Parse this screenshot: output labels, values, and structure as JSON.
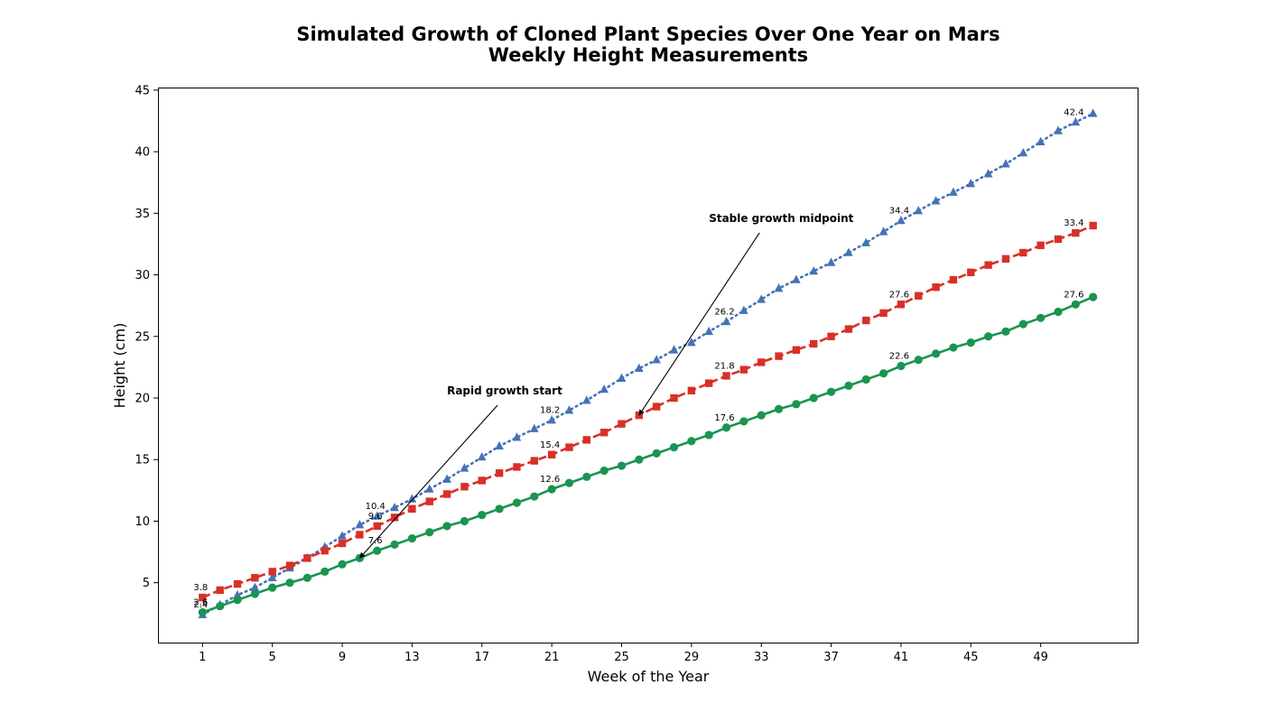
{
  "chart_data": {
    "type": "line",
    "title": "Simulated Growth of Cloned Plant Species Over One Year on Mars",
    "subtitle": "Weekly Height Measurements",
    "xlabel": "Week of the Year",
    "ylabel": "Height (cm)",
    "xlim": [
      -1.55,
      54.55
    ],
    "ylim": [
      0.14,
      45.21
    ],
    "x_ticks": [
      1,
      5,
      9,
      13,
      17,
      21,
      25,
      29,
      33,
      37,
      41,
      45,
      49
    ],
    "y_ticks": [
      5,
      10,
      15,
      20,
      25,
      30,
      35,
      40,
      45
    ],
    "grid": false,
    "legend": "none",
    "x": [
      1,
      2,
      3,
      4,
      5,
      6,
      7,
      8,
      9,
      10,
      11,
      12,
      13,
      14,
      15,
      16,
      17,
      18,
      19,
      20,
      21,
      22,
      23,
      24,
      25,
      26,
      27,
      28,
      29,
      30,
      31,
      32,
      33,
      34,
      35,
      36,
      37,
      38,
      39,
      40,
      41,
      42,
      43,
      44,
      45,
      46,
      47,
      48,
      49,
      50,
      51,
      52
    ],
    "series": [
      {
        "color": "#4472b5",
        "line_style": "dotted",
        "marker": "triangle",
        "values": [
          2.4,
          3.2,
          4.0,
          4.6,
          5.4,
          6.2,
          7.0,
          7.9,
          8.8,
          9.7,
          10.4,
          11.1,
          11.8,
          12.6,
          13.4,
          14.3,
          15.2,
          16.1,
          16.8,
          17.5,
          18.2,
          19.0,
          19.8,
          20.7,
          21.6,
          22.4,
          23.1,
          23.9,
          24.5,
          25.4,
          26.2,
          27.1,
          28.0,
          28.9,
          29.6,
          30.3,
          31.0,
          31.8,
          32.6,
          33.5,
          34.4,
          35.2,
          36.0,
          36.7,
          37.4,
          38.2,
          39.0,
          39.9,
          40.8,
          41.7,
          42.4,
          43.1
        ],
        "labels": [
          "2.4",
          "10.4",
          "18.2",
          "26.2",
          "34.4",
          "42.4"
        ]
      },
      {
        "color": "#d83028",
        "line_style": "dashed",
        "marker": "square",
        "values": [
          3.8,
          4.4,
          4.9,
          5.4,
          5.9,
          6.4,
          7.0,
          7.6,
          8.2,
          8.9,
          9.6,
          10.3,
          11.0,
          11.6,
          12.2,
          12.8,
          13.3,
          13.9,
          14.4,
          14.9,
          15.4,
          16.0,
          16.6,
          17.2,
          17.9,
          18.6,
          19.3,
          20.0,
          20.6,
          21.2,
          21.8,
          22.3,
          22.9,
          23.4,
          23.9,
          24.4,
          25.0,
          25.6,
          26.3,
          26.9,
          27.6,
          28.3,
          29.0,
          29.6,
          30.2,
          30.8,
          31.3,
          31.8,
          32.4,
          32.9,
          33.4,
          34.0
        ],
        "labels": [
          "3.8",
          "9.6",
          "15.4",
          "21.8",
          "27.6",
          "33.4"
        ]
      },
      {
        "color": "#1a9450",
        "line_style": "solid",
        "marker": "circle",
        "values": [
          2.6,
          3.1,
          3.6,
          4.1,
          4.6,
          5.0,
          5.4,
          5.9,
          6.5,
          7.0,
          7.6,
          8.1,
          8.6,
          9.1,
          9.6,
          10.0,
          10.5,
          11.0,
          11.5,
          12.0,
          12.6,
          13.1,
          13.6,
          14.1,
          14.5,
          15.0,
          15.5,
          16.0,
          16.5,
          17.0,
          17.6,
          18.1,
          18.6,
          19.1,
          19.5,
          20.0,
          20.5,
          21.0,
          21.5,
          22.0,
          22.6,
          23.1,
          23.6,
          24.1,
          24.5,
          25.0,
          25.4,
          26.0,
          26.5,
          27.0,
          27.6,
          28.2
        ],
        "labels": [
          "2.6",
          "7.6",
          "12.6",
          "17.6",
          "22.6",
          "27.6"
        ]
      }
    ],
    "label_weeks": [
      1,
      11,
      21,
      31,
      41,
      51
    ],
    "annotations": [
      {
        "text": "Rapid growth start",
        "text_x": 15,
        "text_y": 20.0,
        "arrow_x": 10,
        "arrow_y": 7.0
      },
      {
        "text": "Stable growth midpoint",
        "text_x": 30,
        "text_y": 34.0,
        "arrow_x": 26,
        "arrow_y": 18.6
      }
    ]
  }
}
